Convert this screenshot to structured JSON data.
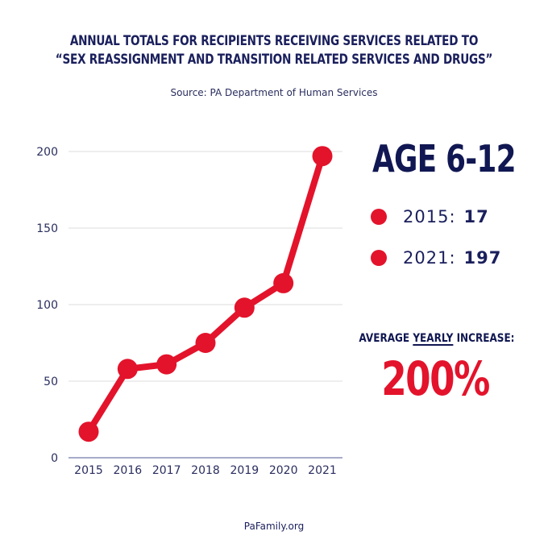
{
  "header": {
    "title_line1": "ANNUAL TOTALS FOR RECIPIENTS RECEIVING SERVICES RELATED TO",
    "title_line2": "“SEX REASSIGNMENT AND TRANSITION RELATED SERVICES AND DRUGS”",
    "source": "Source: PA Department of Human Services"
  },
  "chart_data": {
    "type": "line",
    "title": "",
    "xlabel": "",
    "ylabel": "",
    "categories": [
      "2015",
      "2016",
      "2017",
      "2018",
      "2019",
      "2020",
      "2021"
    ],
    "series": [
      {
        "values": [
          17,
          58,
          61,
          75,
          98,
          114,
          197
        ],
        "color": "#e3132b"
      }
    ],
    "ylim": [
      0,
      200
    ],
    "yticks": [
      0,
      50,
      100,
      150,
      200
    ],
    "grid": true,
    "markers": true
  },
  "panel": {
    "age_title": "AGE 6-12",
    "stats": [
      {
        "label": "2015:",
        "value": "17"
      },
      {
        "label": "2021:",
        "value": "197"
      }
    ],
    "avg_label_prefix": "AVERAGE ",
    "avg_label_underlined": "YEARLY",
    "avg_label_suffix": " INCREASE:",
    "avg_value": "200%"
  },
  "footer": {
    "site": "PaFamily.org"
  },
  "colors": {
    "accent": "#e3132b",
    "navy": "#1a1f5c",
    "grid": "#dcdcdc"
  }
}
